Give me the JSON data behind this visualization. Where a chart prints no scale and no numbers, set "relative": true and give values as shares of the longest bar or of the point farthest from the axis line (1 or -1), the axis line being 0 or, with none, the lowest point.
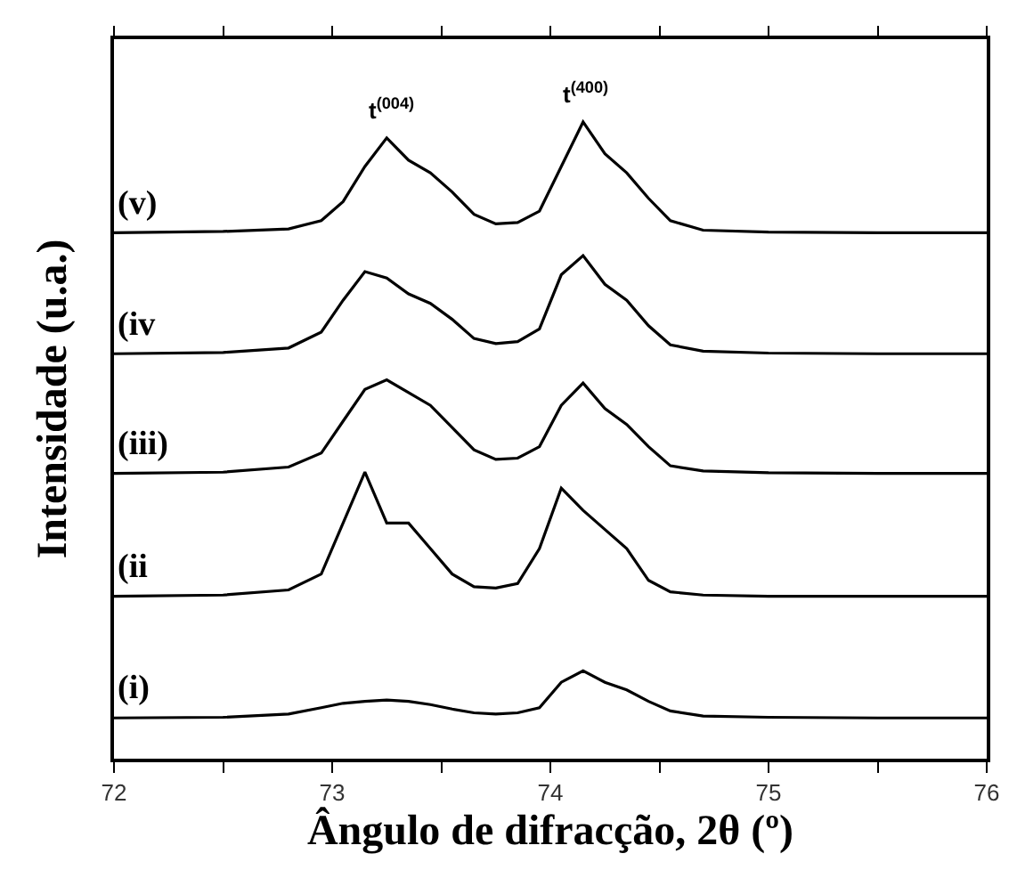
{
  "chart_data": {
    "type": "line",
    "relative": true,
    "xlabel": "Ângulo de difracção, 2θ (º)",
    "ylabel": "Intensidade (u.a.)",
    "xlim": [
      72,
      76
    ],
    "xticks": [
      72,
      {
        "value": 72.5,
        "label": null
      },
      73,
      {
        "value": 73.5,
        "label": null
      },
      74,
      {
        "value": 74.5,
        "label": null
      },
      75,
      {
        "value": 75.5,
        "label": null
      },
      76
    ],
    "x": [
      72,
      72.5,
      72.8,
      72.95,
      73.05,
      73.15,
      73.25,
      73.35,
      73.45,
      73.55,
      73.65,
      73.75,
      73.85,
      73.95,
      74.05,
      74.15,
      74.25,
      74.35,
      74.45,
      74.55,
      74.7,
      75,
      75.5,
      76
    ],
    "series": [
      {
        "name": "(v)",
        "color": "#000000",
        "values": [
          0.826,
          0.828,
          0.832,
          0.845,
          0.875,
          0.93,
          0.975,
          0.94,
          0.92,
          0.89,
          0.855,
          0.84,
          0.842,
          0.86,
          0.93,
          1.0,
          0.95,
          0.92,
          0.88,
          0.845,
          0.83,
          0.827,
          0.826,
          0.826
        ]
      },
      {
        "name": "(iv",
        "color": "#000000",
        "values": [
          0.636,
          0.638,
          0.645,
          0.67,
          0.72,
          0.765,
          0.755,
          0.73,
          0.715,
          0.69,
          0.66,
          0.652,
          0.655,
          0.675,
          0.76,
          0.79,
          0.745,
          0.72,
          0.68,
          0.65,
          0.64,
          0.637,
          0.636,
          0.636
        ]
      },
      {
        "name": "(iii)",
        "color": "#000000",
        "values": [
          0.448,
          0.45,
          0.458,
          0.48,
          0.53,
          0.58,
          0.595,
          0.575,
          0.555,
          0.52,
          0.485,
          0.47,
          0.472,
          0.49,
          0.555,
          0.59,
          0.55,
          0.525,
          0.49,
          0.46,
          0.452,
          0.449,
          0.448,
          0.448
        ]
      },
      {
        "name": "(ii",
        "color": "#000000",
        "values": [
          0.255,
          0.257,
          0.265,
          0.29,
          0.37,
          0.45,
          0.37,
          0.37,
          0.33,
          0.29,
          0.27,
          0.268,
          0.275,
          0.33,
          0.425,
          0.39,
          0.36,
          0.33,
          0.28,
          0.262,
          0.257,
          0.255,
          0.255,
          0.255
        ]
      },
      {
        "name": "(i)",
        "color": "#000000",
        "values": [
          0.064,
          0.065,
          0.07,
          0.08,
          0.087,
          0.09,
          0.092,
          0.09,
          0.085,
          0.078,
          0.072,
          0.07,
          0.072,
          0.08,
          0.12,
          0.138,
          0.12,
          0.108,
          0.09,
          0.075,
          0.067,
          0.065,
          0.064,
          0.064
        ]
      }
    ],
    "annotations": [
      {
        "text": "t$^{(004)}$",
        "x": 73.27,
        "y": 0.975
      },
      {
        "text": "t$^{(400)}$",
        "x": 74.16,
        "y": 1.0
      }
    ],
    "legend": false,
    "marker": "none",
    "line_style": "solid"
  }
}
